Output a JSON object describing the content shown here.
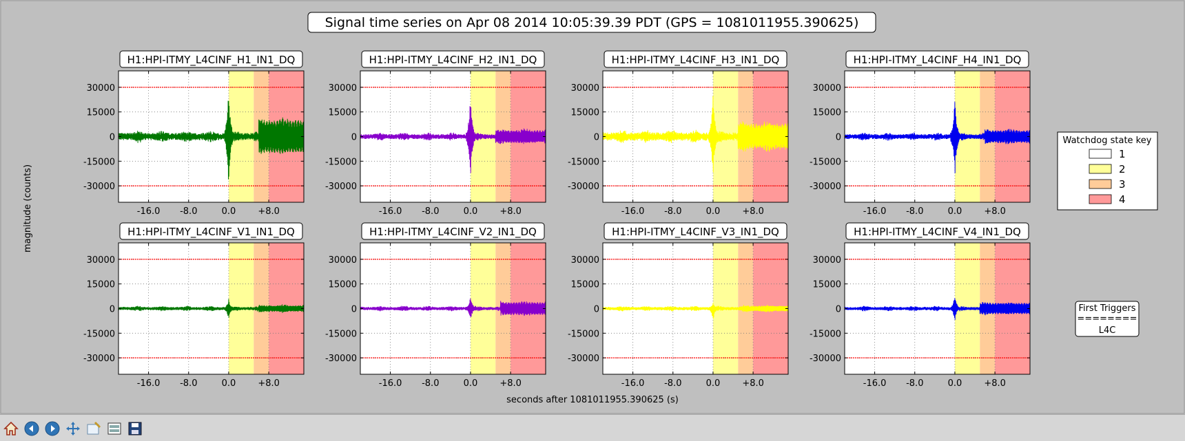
{
  "figure": {
    "title": "Signal time series on Apr 08 2014 10:05:39.39 PDT (GPS = 1081011955.390625)",
    "ylabel": "magnitude (counts)",
    "xlabel": "seconds after 1081011955.390625 (s)"
  },
  "colors": {
    "canvas_bg": "#bfbfbf",
    "state_2": "#ffff99",
    "state_3": "#ffcc99",
    "state_4": "#ff9999",
    "threshold_line": "#ff0000"
  },
  "chart_data": [
    {
      "type": "line",
      "title": "H1:HPI-ITMY_L4CINF_H1_IN1_DQ",
      "color": "#007700",
      "xlim": [
        -22,
        15
      ],
      "ylim": [
        -40000,
        40000
      ],
      "xticks": [
        "-16.0",
        "-8.0",
        "0.0",
        "+8.0"
      ],
      "yticks": [
        "30000",
        "15000",
        "0",
        "-15000",
        "-30000"
      ],
      "thresholds": [
        30000,
        -30000
      ],
      "state_regions": [
        {
          "state": "2",
          "from": 0,
          "to": 5
        },
        {
          "state": "3",
          "from": 5,
          "to": 8
        },
        {
          "state": "4",
          "from": 8,
          "to": 15
        }
      ],
      "spike": {
        "x": 0,
        "max": 30000,
        "min": -33000
      },
      "noise": 2200,
      "tail": {
        "start": 6,
        "amplitude": 8000
      }
    },
    {
      "type": "line",
      "title": "H1:HPI-ITMY_L4CINF_H2_IN1_DQ",
      "color": "#8800cc",
      "xlim": [
        -22,
        15
      ],
      "ylim": [
        -40000,
        40000
      ],
      "xticks": [
        "-16.0",
        "-8.0",
        "0.0",
        "+8.0"
      ],
      "yticks": [
        "30000",
        "15000",
        "0",
        "-15000",
        "-30000"
      ],
      "thresholds": [
        30000,
        -30000
      ],
      "state_regions": [
        {
          "state": "2",
          "from": 0,
          "to": 5
        },
        {
          "state": "3",
          "from": 5,
          "to": 8
        },
        {
          "state": "4",
          "from": 8,
          "to": 15
        }
      ],
      "spike": {
        "x": 0,
        "max": 26000,
        "min": -26000
      },
      "noise": 1500,
      "tail": {
        "start": 5,
        "amplitude": 2500
      }
    },
    {
      "type": "line",
      "title": "H1:HPI-ITMY_L4CINF_H3_IN1_DQ",
      "color": "#ffff00",
      "xlim": [
        -22,
        15
      ],
      "ylim": [
        -40000,
        40000
      ],
      "xticks": [
        "-16.0",
        "-8.0",
        "0.0",
        "+8.0"
      ],
      "yticks": [
        "30000",
        "15000",
        "0",
        "-15000",
        "-30000"
      ],
      "thresholds": [
        30000,
        -30000
      ],
      "state_regions": [
        {
          "state": "2",
          "from": 0,
          "to": 5
        },
        {
          "state": "3",
          "from": 5,
          "to": 8
        },
        {
          "state": "4",
          "from": 8,
          "to": 15
        }
      ],
      "spike": {
        "x": 0,
        "max": 28000,
        "min": -26000
      },
      "noise": 2500,
      "tail": {
        "start": 5,
        "amplitude": 5500
      }
    },
    {
      "type": "line",
      "title": "H1:HPI-ITMY_L4CINF_H4_IN1_DQ",
      "color": "#0000ee",
      "xlim": [
        -22,
        15
      ],
      "ylim": [
        -40000,
        40000
      ],
      "xticks": [
        "-16.0",
        "-8.0",
        "0.0",
        "+8.0"
      ],
      "yticks": [
        "30000",
        "15000",
        "0",
        "-15000",
        "-30000"
      ],
      "thresholds": [
        30000,
        -30000
      ],
      "state_regions": [
        {
          "state": "2",
          "from": 0,
          "to": 5
        },
        {
          "state": "3",
          "from": 5,
          "to": 8
        },
        {
          "state": "4",
          "from": 8,
          "to": 15
        }
      ],
      "spike": {
        "x": 0,
        "max": 24000,
        "min": -25000
      },
      "noise": 1500,
      "tail": {
        "start": 6,
        "amplitude": 2500
      }
    },
    {
      "type": "line",
      "title": "H1:HPI-ITMY_L4CINF_V1_IN1_DQ",
      "color": "#007700",
      "xlim": [
        -22,
        15
      ],
      "ylim": [
        -40000,
        40000
      ],
      "xticks": [
        "-16.0",
        "-8.0",
        "0.0",
        "+8.0"
      ],
      "yticks": [
        "30000",
        "15000",
        "0",
        "-15000",
        "-30000"
      ],
      "thresholds": [
        30000,
        -30000
      ],
      "state_regions": [
        {
          "state": "2",
          "from": 0,
          "to": 5
        },
        {
          "state": "3",
          "from": 5,
          "to": 8
        },
        {
          "state": "4",
          "from": 8,
          "to": 15
        }
      ],
      "spike": {
        "x": 0,
        "max": 6000,
        "min": -7000
      },
      "noise": 1000,
      "tail": {
        "start": 6,
        "amplitude": 1000
      }
    },
    {
      "type": "line",
      "title": "H1:HPI-ITMY_L4CINF_V2_IN1_DQ",
      "color": "#8800cc",
      "xlim": [
        -22,
        15
      ],
      "ylim": [
        -40000,
        40000
      ],
      "xticks": [
        "-16.0",
        "-8.0",
        "0.0",
        "+8.0"
      ],
      "yticks": [
        "30000",
        "15000",
        "0",
        "-15000",
        "-30000"
      ],
      "thresholds": [
        30000,
        -30000
      ],
      "state_regions": [
        {
          "state": "2",
          "from": 0,
          "to": 5
        },
        {
          "state": "3",
          "from": 5,
          "to": 8
        },
        {
          "state": "4",
          "from": 8,
          "to": 15
        }
      ],
      "spike": {
        "x": 0,
        "max": 9000,
        "min": -8000
      },
      "noise": 1000,
      "tail": {
        "start": 6,
        "amplitude": 3000
      }
    },
    {
      "type": "line",
      "title": "H1:HPI-ITMY_L4CINF_V3_IN1_DQ",
      "color": "#ffff00",
      "xlim": [
        -22,
        15
      ],
      "ylim": [
        -40000,
        40000
      ],
      "xticks": [
        "-16.0",
        "-8.0",
        "0.0",
        "+8.0"
      ],
      "yticks": [
        "30000",
        "15000",
        "0",
        "-15000",
        "-30000"
      ],
      "thresholds": [
        30000,
        -30000
      ],
      "state_regions": [
        {
          "state": "2",
          "from": 0,
          "to": 5
        },
        {
          "state": "3",
          "from": 5,
          "to": 8
        },
        {
          "state": "4",
          "from": 8,
          "to": 15
        }
      ],
      "spike": {
        "x": 0,
        "max": 4000,
        "min": -8000
      },
      "noise": 1000,
      "tail": {
        "start": 6,
        "amplitude": 800
      }
    },
    {
      "type": "line",
      "title": "H1:HPI-ITMY_L4CINF_V4_IN1_DQ",
      "color": "#0000ee",
      "xlim": [
        -22,
        15
      ],
      "ylim": [
        -40000,
        40000
      ],
      "xticks": [
        "-16.0",
        "-8.0",
        "0.0",
        "+8.0"
      ],
      "yticks": [
        "30000",
        "15000",
        "0",
        "-15000",
        "-30000"
      ],
      "thresholds": [
        30000,
        -30000
      ],
      "state_regions": [
        {
          "state": "2",
          "from": 0,
          "to": 5
        },
        {
          "state": "3",
          "from": 5,
          "to": 8
        },
        {
          "state": "4",
          "from": 8,
          "to": 15
        }
      ],
      "spike": {
        "x": 0,
        "max": 9000,
        "min": -8000
      },
      "noise": 1000,
      "tail": {
        "start": 5,
        "amplitude": 2500
      }
    }
  ],
  "legend": {
    "title": "Watchdog state key",
    "items": [
      {
        "label": "1",
        "color": "#ffffff"
      },
      {
        "label": "2",
        "color": "#ffff99"
      },
      {
        "label": "3",
        "color": "#ffcc99"
      },
      {
        "label": "4",
        "color": "#ff9999"
      }
    ]
  },
  "first_triggers": {
    "title": "First Triggers",
    "separator": "========",
    "value": "L4C"
  },
  "toolbar": {
    "buttons": [
      {
        "name": "home-button",
        "icon": "home-icon"
      },
      {
        "name": "back-button",
        "icon": "back-arrow-icon"
      },
      {
        "name": "forward-button",
        "icon": "forward-arrow-icon"
      },
      {
        "name": "pan-button",
        "icon": "pan-arrows-icon"
      },
      {
        "name": "zoom-button",
        "icon": "zoom-rect-icon"
      },
      {
        "name": "subplots-button",
        "icon": "subplots-icon"
      },
      {
        "name": "save-button",
        "icon": "save-disk-icon"
      }
    ]
  }
}
